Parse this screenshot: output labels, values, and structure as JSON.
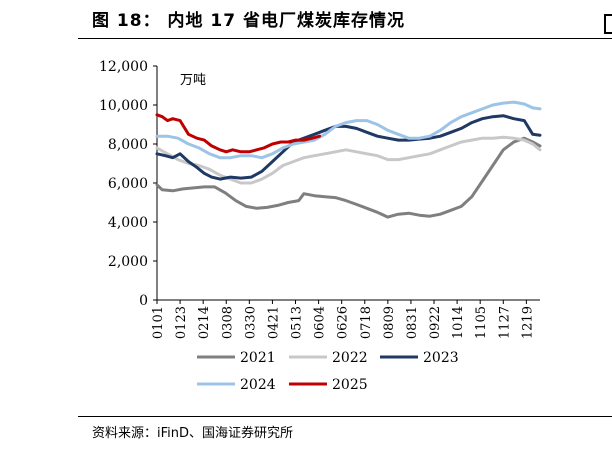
{
  "title": "图 18：   内地 17 省电厂煤炭库存情况",
  "source": "资料来源：iFinD、国海证券研究所",
  "chart_data": {
    "type": "line",
    "unit_label": "万吨",
    "ylim": [
      0,
      12000
    ],
    "yticks": [
      "0",
      "2,000",
      "4,000",
      "6,000",
      "8,000",
      "10,000",
      "12,000"
    ],
    "ytick_values": [
      0,
      2000,
      4000,
      6000,
      8000,
      10000,
      12000
    ],
    "x_tick_labels": [
      "0101",
      "0123",
      "0214",
      "0308",
      "0330",
      "0421",
      "0513",
      "0604",
      "0626",
      "0718",
      "0809",
      "0831",
      "0922",
      "1014",
      "1105",
      "1127",
      "1219"
    ],
    "x_tick_days": [
      0,
      22,
      44,
      66,
      88,
      110,
      132,
      154,
      176,
      198,
      220,
      242,
      264,
      286,
      308,
      330,
      352
    ],
    "xlim": [
      0,
      365
    ],
    "grid": false,
    "legend_position": "bottom",
    "series": [
      {
        "name": "2021",
        "color": "#7f7f7f",
        "days": [
          0,
          5,
          15,
          25,
          35,
          45,
          55,
          65,
          75,
          85,
          95,
          105,
          115,
          125,
          135,
          140,
          145,
          150,
          160,
          170,
          180,
          190,
          200,
          210,
          220,
          230,
          240,
          250,
          260,
          270,
          280,
          290,
          300,
          310,
          320,
          330,
          340,
          350,
          358,
          365
        ],
        "values": [
          5900,
          5650,
          5600,
          5700,
          5750,
          5800,
          5800,
          5500,
          5100,
          4800,
          4700,
          4750,
          4850,
          5000,
          5100,
          5450,
          5400,
          5350,
          5300,
          5250,
          5100,
          4900,
          4700,
          4500,
          4250,
          4400,
          4450,
          4350,
          4300,
          4400,
          4600,
          4800,
          5300,
          6100,
          6900,
          7700,
          8100,
          8300,
          8100,
          7900
        ]
      },
      {
        "name": "2022",
        "color": "#c8c8c8",
        "days": [
          0,
          10,
          20,
          30,
          40,
          50,
          60,
          70,
          80,
          90,
          100,
          110,
          120,
          130,
          140,
          150,
          160,
          170,
          180,
          190,
          200,
          210,
          220,
          230,
          240,
          250,
          260,
          270,
          280,
          290,
          300,
          310,
          320,
          330,
          340,
          350,
          358,
          365
        ],
        "values": [
          7800,
          7500,
          7200,
          7000,
          6900,
          6700,
          6400,
          6200,
          6000,
          6000,
          6200,
          6500,
          6900,
          7100,
          7300,
          7400,
          7500,
          7600,
          7700,
          7600,
          7500,
          7400,
          7200,
          7200,
          7300,
          7400,
          7500,
          7700,
          7900,
          8100,
          8200,
          8300,
          8300,
          8350,
          8300,
          8200,
          8000,
          7700
        ]
      },
      {
        "name": "2023",
        "color": "#1f3864",
        "days": [
          0,
          8,
          15,
          22,
          30,
          38,
          45,
          52,
          60,
          70,
          80,
          90,
          100,
          110,
          120,
          130,
          140,
          150,
          160,
          170,
          180,
          190,
          200,
          210,
          220,
          230,
          240,
          250,
          260,
          270,
          280,
          290,
          300,
          310,
          320,
          330,
          340,
          350,
          358,
          365
        ],
        "values": [
          7500,
          7400,
          7300,
          7500,
          7100,
          6800,
          6500,
          6300,
          6200,
          6300,
          6250,
          6300,
          6600,
          7100,
          7600,
          8100,
          8300,
          8500,
          8700,
          8900,
          8900,
          8800,
          8600,
          8400,
          8300,
          8200,
          8200,
          8250,
          8300,
          8400,
          8600,
          8800,
          9100,
          9300,
          9400,
          9450,
          9300,
          9200,
          8500,
          8450
        ]
      },
      {
        "name": "2024",
        "color": "#9dc3e6",
        "days": [
          0,
          10,
          20,
          30,
          40,
          50,
          60,
          70,
          80,
          90,
          100,
          110,
          120,
          130,
          140,
          150,
          160,
          170,
          180,
          190,
          200,
          210,
          220,
          230,
          240,
          250,
          260,
          270,
          280,
          290,
          300,
          310,
          320,
          330,
          340,
          350,
          358,
          365
        ],
        "values": [
          8400,
          8400,
          8300,
          8000,
          7800,
          7500,
          7300,
          7300,
          7400,
          7400,
          7300,
          7500,
          7800,
          8000,
          8100,
          8200,
          8500,
          8900,
          9100,
          9200,
          9200,
          9000,
          8700,
          8500,
          8300,
          8300,
          8400,
          8700,
          9100,
          9400,
          9600,
          9800,
          10000,
          10100,
          10150,
          10050,
          9850,
          9800
        ]
      },
      {
        "name": "2025",
        "color": "#c00000",
        "days": [
          0,
          5,
          10,
          15,
          22,
          30,
          38,
          45,
          52,
          60,
          66,
          72,
          80,
          88,
          95,
          102,
          110,
          118,
          125,
          132,
          140,
          148,
          155
        ],
        "values": [
          9500,
          9400,
          9200,
          9300,
          9200,
          8500,
          8300,
          8200,
          7900,
          7700,
          7600,
          7700,
          7600,
          7600,
          7700,
          7800,
          8000,
          8100,
          8100,
          8200,
          8200,
          8300,
          8400
        ]
      }
    ]
  }
}
